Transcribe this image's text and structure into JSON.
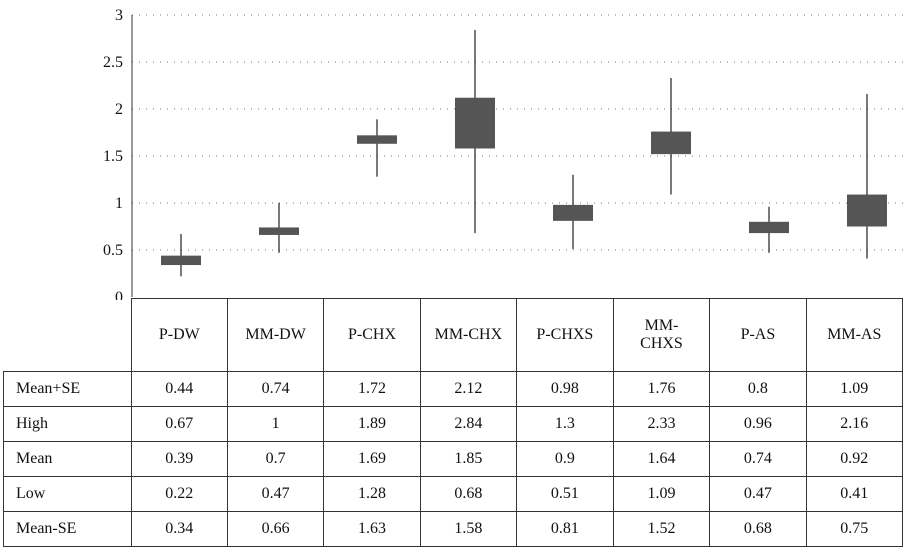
{
  "chart_data": {
    "type": "boxplot",
    "ylim": [
      0,
      3
    ],
    "yticks": [
      "0",
      "0.5",
      "1",
      "1.5",
      "2",
      "2.5",
      "3"
    ],
    "grid": true,
    "categories": [
      "P-DW",
      "MM-DW",
      "P-CHX",
      "MM-CHX",
      "P-CHXS",
      "MM-CHXS",
      "P-AS",
      "MM-AS"
    ],
    "category_labels": [
      [
        "P-DW"
      ],
      [
        "MM-DW"
      ],
      [
        "P-CHX"
      ],
      [
        "MM-CHX"
      ],
      [
        "P-CHXS"
      ],
      [
        "MM-",
        "CHXS"
      ],
      [
        "P-AS"
      ],
      [
        "MM-AS"
      ]
    ],
    "series": [
      {
        "name": "Mean+SE",
        "values": [
          0.44,
          0.74,
          1.72,
          2.12,
          0.98,
          1.76,
          0.8,
          1.09
        ],
        "labels": [
          "0.44",
          "0.74",
          "1.72",
          "2.12",
          "0.98",
          "1.76",
          "0.8",
          "1.09"
        ]
      },
      {
        "name": "High",
        "values": [
          0.67,
          1,
          1.89,
          2.84,
          1.3,
          2.33,
          0.96,
          2.16
        ],
        "labels": [
          "0.67",
          "1",
          "1.89",
          "2.84",
          "1.3",
          "2.33",
          "0.96",
          "2.16"
        ]
      },
      {
        "name": "Mean",
        "values": [
          0.39,
          0.7,
          1.69,
          1.85,
          0.9,
          1.64,
          0.74,
          0.92
        ],
        "labels": [
          "0.39",
          "0.7",
          "1.69",
          "1.85",
          "0.9",
          "1.64",
          "0.74",
          "0.92"
        ]
      },
      {
        "name": "Low",
        "values": [
          0.22,
          0.47,
          1.28,
          0.68,
          0.51,
          1.09,
          0.47,
          0.41
        ],
        "labels": [
          "0.22",
          "0.47",
          "1.28",
          "0.68",
          "0.51",
          "1.09",
          "0.47",
          "0.41"
        ]
      },
      {
        "name": "Mean-SE",
        "values": [
          0.34,
          0.66,
          1.63,
          1.58,
          0.81,
          1.52,
          0.68,
          0.75
        ],
        "labels": [
          "0.34",
          "0.66",
          "1.63",
          "1.58",
          "0.81",
          "1.52",
          "0.68",
          "0.75"
        ]
      }
    ],
    "colors": {
      "box": "#555555",
      "whisker": "#222222",
      "grid": "#777777"
    }
  }
}
